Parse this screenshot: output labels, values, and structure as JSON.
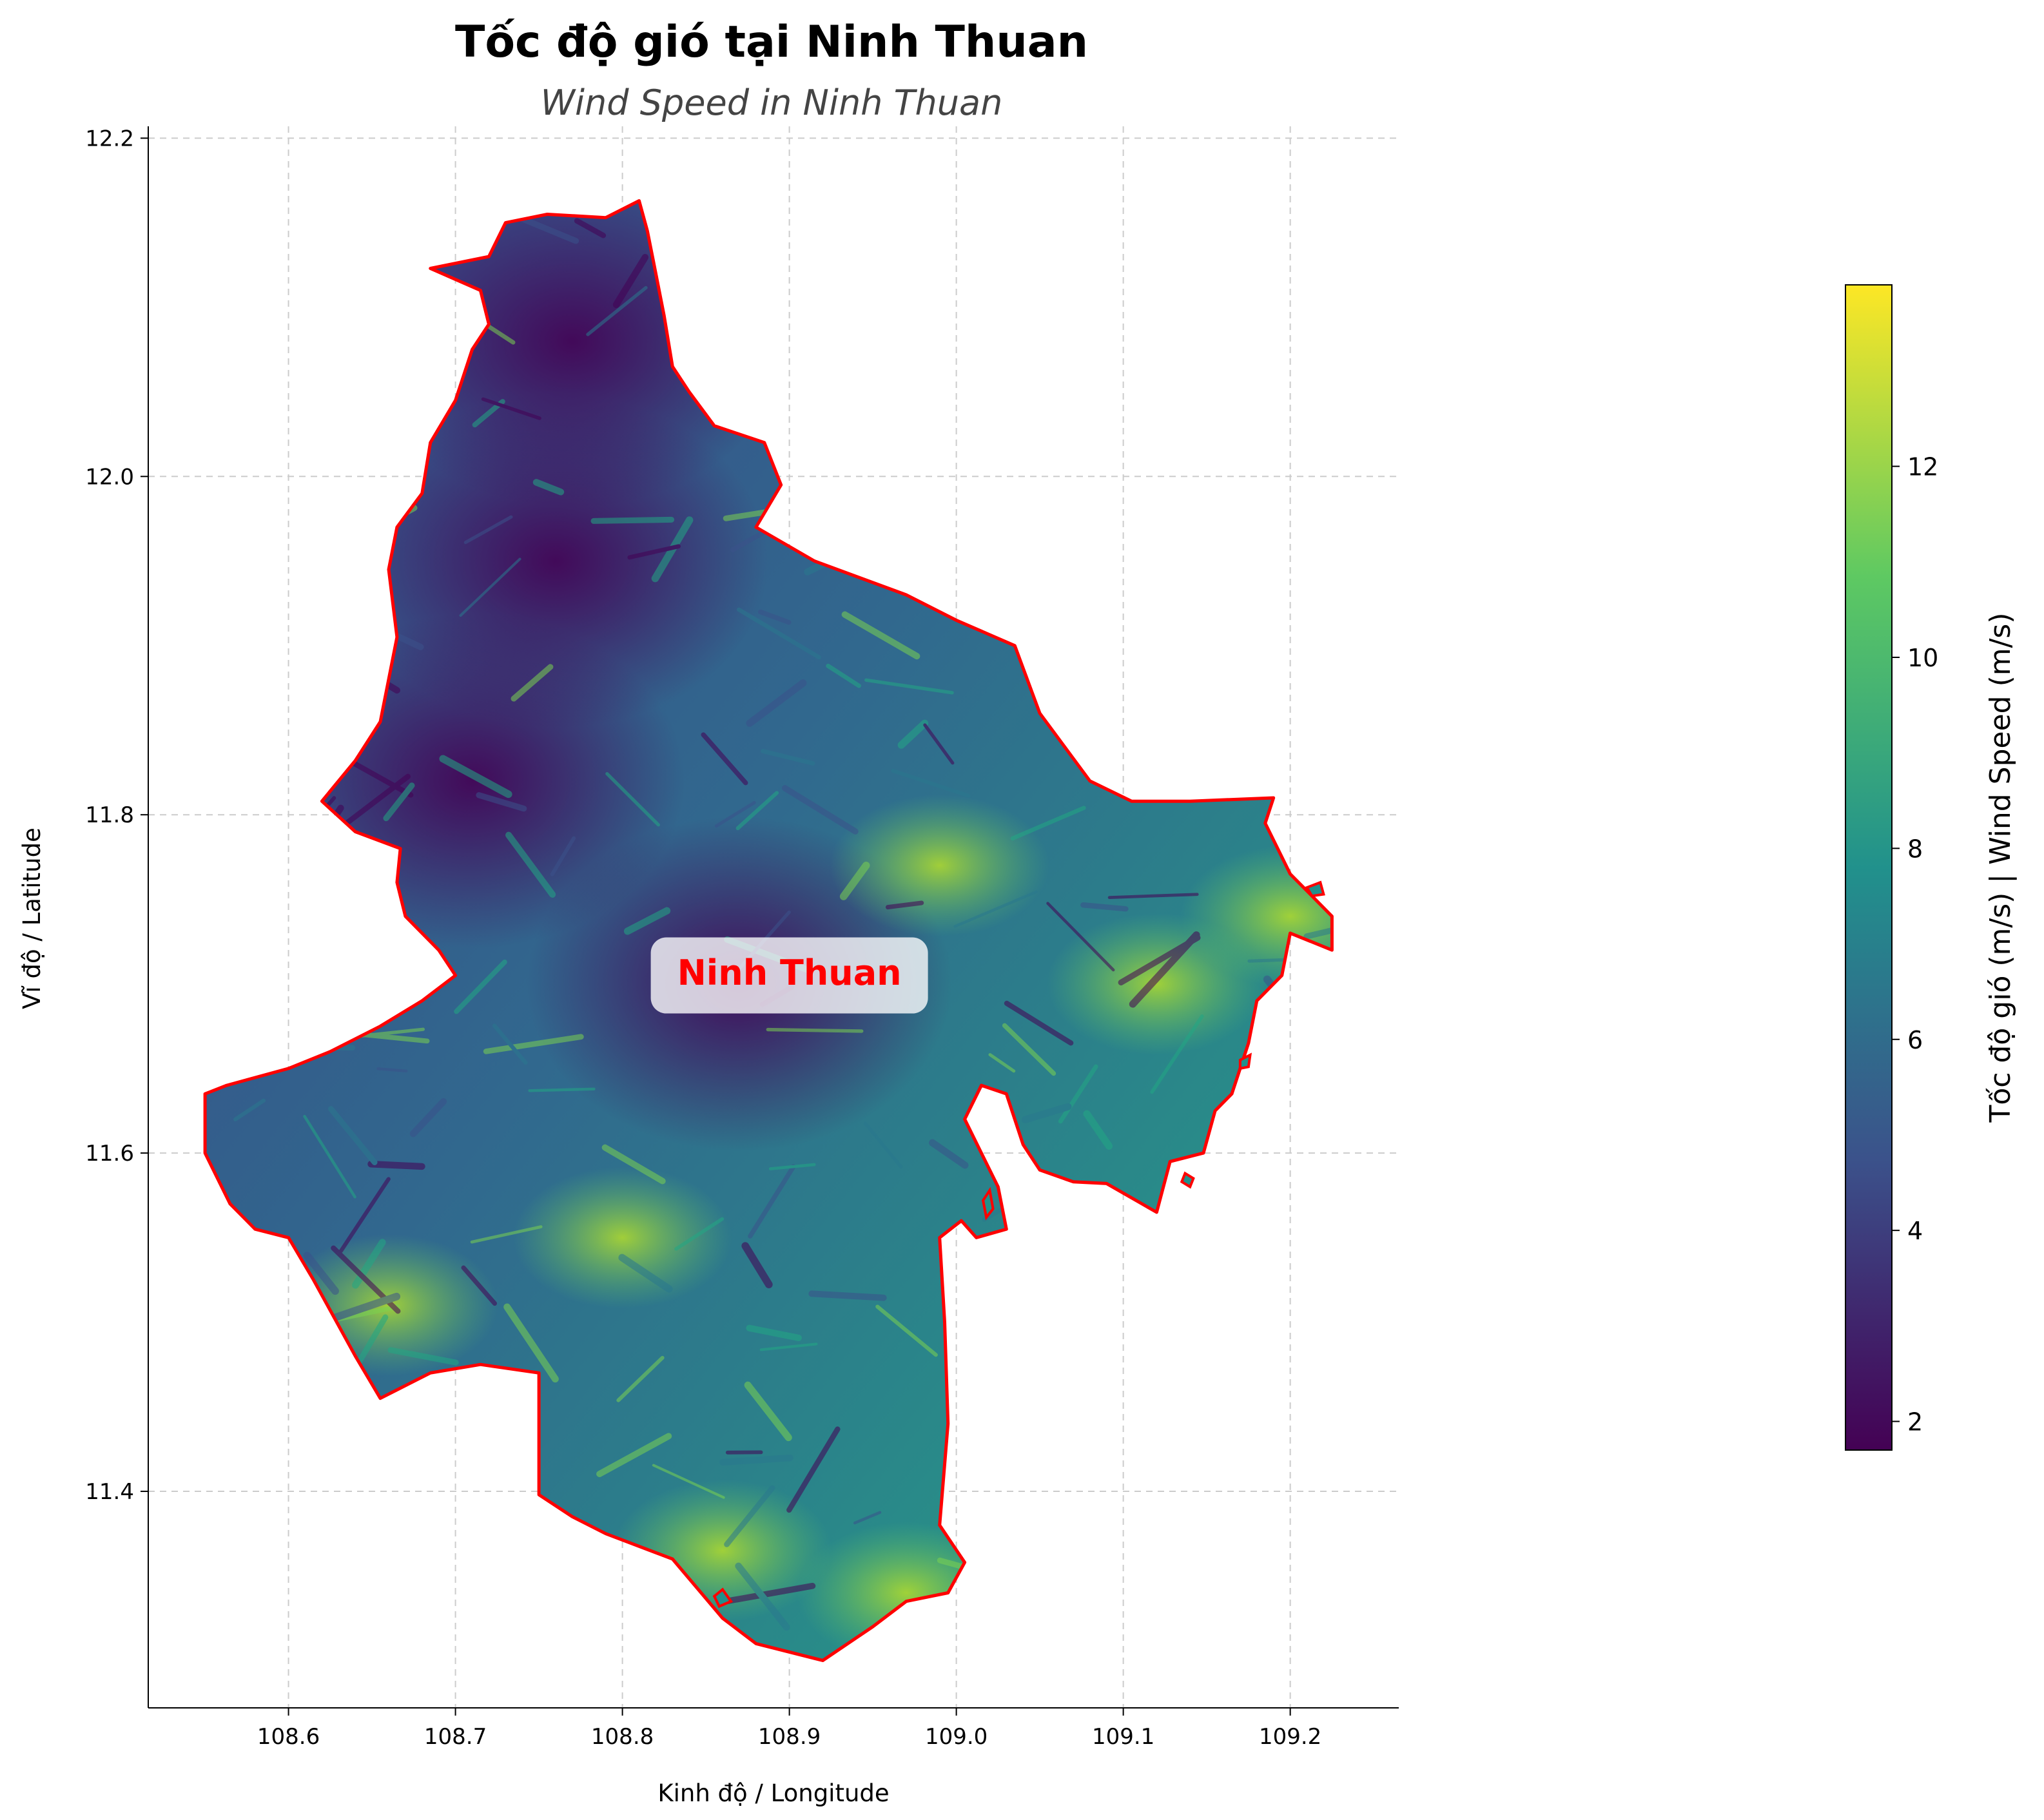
{
  "title": "Tốc độ gió tại Ninh Thuan",
  "subtitle": "Wind Speed in Ninh Thuan",
  "region_label": "Ninh Thuan",
  "colors": {
    "boundary": "#ff0000",
    "region_label_text": "#ff0000",
    "subtitle": "#444444",
    "grid": "#cccccc",
    "colormap": [
      "#440154",
      "#3b528b",
      "#21918c",
      "#5ec962",
      "#fde725"
    ]
  },
  "chart_data": {
    "type": "heatmap",
    "colormap_name": "viridis",
    "xlabel": "Kinh độ / Longitude",
    "ylabel": "Vĩ độ / Latitude",
    "xlim": [
      108.516,
      109.265
    ],
    "ylim": [
      11.272,
      12.207
    ],
    "x_ticks": [
      108.6,
      108.7,
      108.8,
      108.9,
      109.0,
      109.1,
      109.2
    ],
    "x_tick_labels": [
      "108.6",
      "108.7",
      "108.8",
      "108.9",
      "109.0",
      "109.1",
      "109.2"
    ],
    "y_ticks": [
      11.4,
      11.6,
      11.8,
      12.0,
      12.2
    ],
    "y_tick_labels": [
      "11.4",
      "11.6",
      "11.8",
      "12.0",
      "12.2"
    ],
    "grid": true,
    "region_label_position": {
      "lon": 108.9,
      "lat": 11.705
    },
    "colorbar": {
      "label": "Tốc độ gió (m/s) | Wind Speed (m/s)",
      "range": [
        1.7,
        13.9
      ],
      "ticks": [
        2,
        4,
        6,
        8,
        10,
        12
      ],
      "tick_labels": [
        "2",
        "4",
        "6",
        "8",
        "10",
        "12"
      ]
    },
    "boundary_lonlat": [
      [
        108.73,
        12.15
      ],
      [
        108.755,
        12.155
      ],
      [
        108.79,
        12.153
      ],
      [
        108.81,
        12.163
      ],
      [
        108.815,
        12.145
      ],
      [
        108.82,
        12.12
      ],
      [
        108.825,
        12.095
      ],
      [
        108.83,
        12.065
      ],
      [
        108.84,
        12.05
      ],
      [
        108.855,
        12.03
      ],
      [
        108.885,
        12.02
      ],
      [
        108.895,
        11.995
      ],
      [
        108.88,
        11.97
      ],
      [
        108.915,
        11.95
      ],
      [
        108.97,
        11.93
      ],
      [
        109.0,
        11.915
      ],
      [
        109.035,
        11.9
      ],
      [
        109.05,
        11.86
      ],
      [
        109.08,
        11.82
      ],
      [
        109.105,
        11.808
      ],
      [
        109.14,
        11.808
      ],
      [
        109.19,
        11.81
      ],
      [
        109.185,
        11.795
      ],
      [
        109.2,
        11.765
      ],
      [
        109.21,
        11.755
      ],
      [
        109.225,
        11.74
      ],
      [
        109.225,
        11.72
      ],
      [
        109.2,
        11.73
      ],
      [
        109.195,
        11.705
      ],
      [
        109.18,
        11.69
      ],
      [
        109.175,
        11.665
      ],
      [
        109.165,
        11.635
      ],
      [
        109.155,
        11.625
      ],
      [
        109.148,
        11.6
      ],
      [
        109.128,
        11.595
      ],
      [
        109.12,
        11.565
      ],
      [
        109.09,
        11.582
      ],
      [
        109.07,
        11.583
      ],
      [
        109.05,
        11.59
      ],
      [
        109.04,
        11.605
      ],
      [
        109.03,
        11.635
      ],
      [
        109.015,
        11.64
      ],
      [
        109.005,
        11.62
      ],
      [
        109.02,
        11.59
      ],
      [
        109.025,
        11.58
      ],
      [
        109.03,
        11.555
      ],
      [
        109.012,
        11.55
      ],
      [
        109.003,
        11.56
      ],
      [
        108.99,
        11.55
      ],
      [
        108.993,
        11.5
      ],
      [
        108.995,
        11.44
      ],
      [
        108.99,
        11.38
      ],
      [
        109.005,
        11.358
      ],
      [
        108.995,
        11.34
      ],
      [
        108.97,
        11.335
      ],
      [
        108.95,
        11.32
      ],
      [
        108.92,
        11.3
      ],
      [
        108.88,
        11.31
      ],
      [
        108.86,
        11.325
      ],
      [
        108.83,
        11.36
      ],
      [
        108.79,
        11.375
      ],
      [
        108.77,
        11.385
      ],
      [
        108.75,
        11.398
      ],
      [
        108.75,
        11.47
      ],
      [
        108.715,
        11.475
      ],
      [
        108.685,
        11.47
      ],
      [
        108.655,
        11.455
      ],
      [
        108.64,
        11.48
      ],
      [
        108.615,
        11.525
      ],
      [
        108.6,
        11.55
      ],
      [
        108.58,
        11.555
      ],
      [
        108.565,
        11.57
      ],
      [
        108.55,
        11.6
      ],
      [
        108.55,
        11.635
      ],
      [
        108.563,
        11.64
      ],
      [
        108.6,
        11.65
      ],
      [
        108.625,
        11.66
      ],
      [
        108.655,
        11.675
      ],
      [
        108.68,
        11.69
      ],
      [
        108.7,
        11.705
      ],
      [
        108.69,
        11.72
      ],
      [
        108.67,
        11.74
      ],
      [
        108.665,
        11.76
      ],
      [
        108.667,
        11.78
      ],
      [
        108.64,
        11.79
      ],
      [
        108.62,
        11.808
      ],
      [
        108.64,
        11.832
      ],
      [
        108.655,
        11.855
      ],
      [
        108.665,
        11.905
      ],
      [
        108.66,
        11.945
      ],
      [
        108.665,
        11.97
      ],
      [
        108.68,
        11.99
      ],
      [
        108.685,
        12.02
      ],
      [
        108.7,
        12.045
      ],
      [
        108.71,
        12.075
      ],
      [
        108.72,
        12.09
      ],
      [
        108.715,
        12.11
      ],
      [
        108.685,
        12.123
      ],
      [
        108.72,
        12.13
      ],
      [
        108.73,
        12.15
      ]
    ],
    "islands_lonlat": [
      [
        [
          108.855,
          11.338
        ],
        [
          108.86,
          11.342
        ],
        [
          108.865,
          11.335
        ],
        [
          108.858,
          11.332
        ]
      ],
      [
        [
          109.016,
          11.572
        ],
        [
          109.02,
          11.578
        ],
        [
          109.022,
          11.567
        ],
        [
          109.018,
          11.562
        ]
      ],
      [
        [
          109.137,
          11.588
        ],
        [
          109.142,
          11.585
        ],
        [
          109.14,
          11.58
        ],
        [
          109.135,
          11.583
        ]
      ],
      [
        [
          109.17,
          11.655
        ],
        [
          109.176,
          11.658
        ],
        [
          109.175,
          11.651
        ],
        [
          109.17,
          11.65
        ]
      ],
      [
        [
          109.21,
          11.757
        ],
        [
          109.218,
          11.76
        ],
        [
          109.22,
          11.753
        ],
        [
          109.213,
          11.752
        ]
      ]
    ],
    "wind_pattern": {
      "low_centers_lonlat": [
        [
          108.71,
          11.82
        ],
        [
          108.76,
          11.95
        ],
        [
          108.87,
          11.7
        ],
        [
          108.77,
          12.08
        ]
      ],
      "high_centers_lonlat": [
        [
          108.97,
          11.34
        ],
        [
          108.86,
          11.365
        ],
        [
          108.99,
          11.77
        ],
        [
          109.2,
          11.74
        ],
        [
          109.12,
          11.7
        ],
        [
          108.66,
          11.51
        ],
        [
          108.8,
          11.55
        ]
      ]
    }
  }
}
